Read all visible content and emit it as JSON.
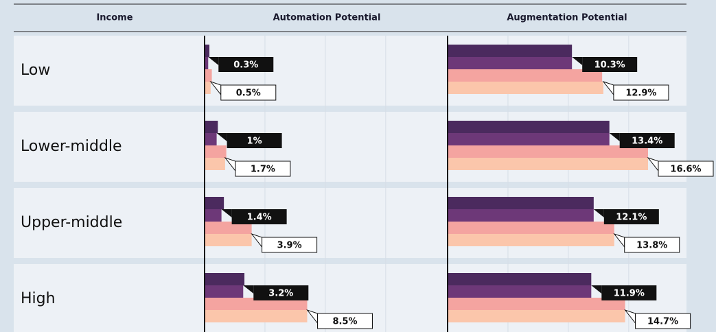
{
  "header": {
    "label": "Income"
  },
  "chart_data": [
    {
      "type": "bar",
      "orientation": "horizontal",
      "title": "Automation Potential",
      "categories": [
        "Low",
        "Lower-middle",
        "Upper-middle",
        "High"
      ],
      "series": [
        {
          "color": "#4b2a5e",
          "values": [
            0.4,
            1.1,
            1.6,
            3.3
          ]
        },
        {
          "color": "#6d3878",
          "values": [
            0.3,
            1,
            1.4,
            3.2
          ],
          "value_labels": [
            "0.3%",
            "1%",
            "1.4%",
            "3.2%"
          ]
        },
        {
          "color": "#f4a4a0",
          "values": [
            0.6,
            1.8,
            3.9,
            8.5
          ]
        },
        {
          "color": "#fbc6ab",
          "values": [
            0.5,
            1.7,
            3.9,
            8.5
          ],
          "value_labels": [
            "0.5%",
            "1.7%",
            "3.9%",
            "8.5%"
          ]
        }
      ],
      "xlim": [
        0,
        19.5
      ],
      "xticks": [
        0,
        5,
        10,
        15
      ],
      "grid": true
    },
    {
      "type": "bar",
      "orientation": "horizontal",
      "title": "Augmentation Potential",
      "series": [
        {
          "color": "#4b2a5e",
          "values": [
            10.3,
            13.4,
            12.1,
            11.9
          ]
        },
        {
          "color": "#6d3878",
          "values": [
            10.3,
            13.4,
            12.1,
            11.9
          ],
          "value_labels": [
            "10.3%",
            "13.4%",
            "12.1%",
            "11.9%"
          ]
        },
        {
          "color": "#f4a4a0",
          "values": [
            12.8,
            16.6,
            13.8,
            14.7
          ]
        },
        {
          "color": "#fbc6ab",
          "values": [
            12.9,
            16.6,
            13.8,
            14.7
          ],
          "value_labels": [
            "12.9%",
            "16.6%",
            "13.8%",
            "14.7%"
          ]
        }
      ],
      "xlim": [
        0,
        19.5
      ],
      "xticks": [
        0,
        5,
        10,
        15
      ],
      "grid": true
    }
  ]
}
